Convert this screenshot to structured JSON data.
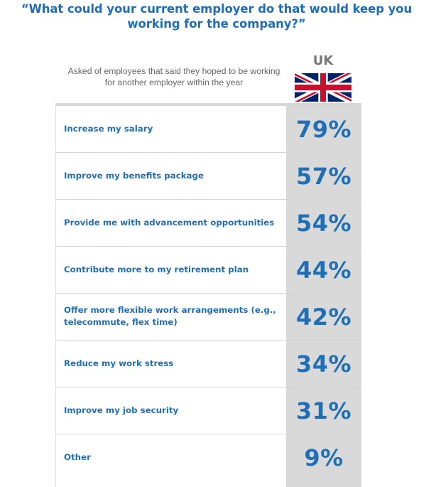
{
  "header": {
    "title_line1": "“What could your current employer do that would keep you",
    "title_line2": "working for the company?”",
    "subtitle_line1": "Asked of employees that said they hoped to be working",
    "subtitle_line2": "for another employer within the year"
  },
  "country": {
    "label": "UK",
    "flag_icon": "uk-flag-icon",
    "flag_colors": {
      "blue": "#012169",
      "red": "#C8102E",
      "white": "#FFFFFF"
    }
  },
  "colors": {
    "accent": "#1f6fb8",
    "value_column_bg": "#d9d9d9"
  },
  "chart_data": {
    "type": "table",
    "title": "“What could your current employer do that would keep you working for the company?”",
    "subtitle": "Asked of employees that said they hoped to be working for another employer within the year",
    "column": "UK",
    "rows": [
      {
        "label_lines": [
          "Increase my salary"
        ],
        "value": 79,
        "value_label": "79%"
      },
      {
        "label_lines": [
          "Improve my benefits package"
        ],
        "value": 57,
        "value_label": "57%"
      },
      {
        "label_lines": [
          "Provide me with advancement opportunities"
        ],
        "value": 54,
        "value_label": "54%"
      },
      {
        "label_lines": [
          "Contribute more to my retirement plan"
        ],
        "value": 44,
        "value_label": "44%"
      },
      {
        "label_lines": [
          "Offer more flexible work arrangements (e.g.,",
          "telecommute, flex time)"
        ],
        "value": 42,
        "value_label": "42%"
      },
      {
        "label_lines": [
          "Reduce my work stress"
        ],
        "value": 34,
        "value_label": "34%"
      },
      {
        "label_lines": [
          "Improve my job security"
        ],
        "value": 31,
        "value_label": "31%"
      },
      {
        "label_lines": [
          "Other"
        ],
        "value": 9,
        "value_label": "9%"
      }
    ]
  }
}
